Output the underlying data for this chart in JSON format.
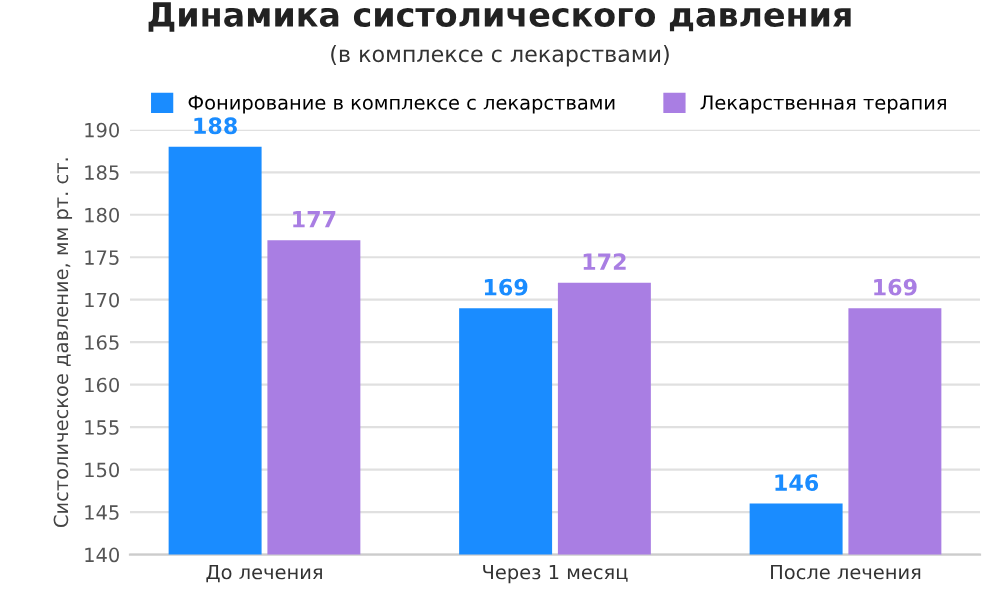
{
  "chart_data": {
    "type": "bar",
    "title": "Динамика систолического давления",
    "subtitle": "(в комплексе с лекарствами)",
    "ylabel": "Систолическое давление, мм рт. ст.",
    "categories": [
      "До лечения",
      "Через 1 месяц",
      "После лечения"
    ],
    "series": [
      {
        "name": "Фонирование в комплексе с лекарствами",
        "color": "#1a8cff",
        "values": [
          188,
          169,
          146
        ]
      },
      {
        "name": "Лекарственная терапия",
        "color": "#a97ee3",
        "values": [
          177,
          172,
          169
        ]
      }
    ],
    "ylim": [
      140,
      190
    ],
    "yticks": [
      140,
      145,
      150,
      155,
      160,
      165,
      170,
      175,
      180,
      185,
      190
    ],
    "grid": "y",
    "legend": "top",
    "data_labels": true
  }
}
